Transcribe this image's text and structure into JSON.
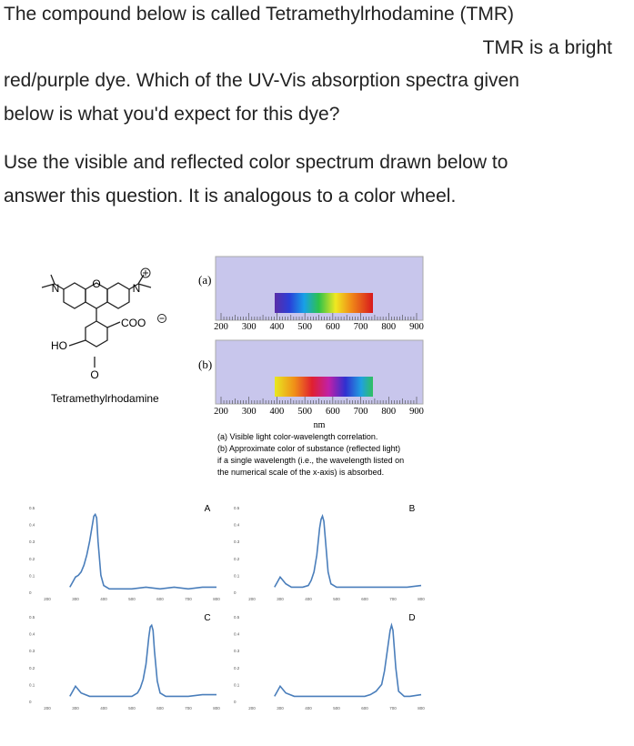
{
  "question": {
    "lines": [
      "The compound below is called Tetramethylrhodamine (TMR)",
      "TMR is a bright",
      "red/purple dye. Which of the UV-Vis absorption spectra given",
      "below is what you'd expect for this dye?"
    ],
    "hint_lines": [
      "Use the visible and reflected color spectrum drawn below to",
      "answer this question. It is analogous to a color wheel."
    ]
  },
  "molecule": {
    "atoms": [
      "N",
      "O",
      "N",
      "COO",
      "HO",
      "O"
    ],
    "name": "Tetramethylrhodamine"
  },
  "spectrum": {
    "panel_a": "(a)",
    "panel_b": "(b)",
    "ticks": [
      "200",
      "300",
      "400",
      "500",
      "600",
      "700",
      "800",
      "900"
    ],
    "unit": "nm",
    "caption": [
      "(a) Visible light color-wavelength correlation.",
      "(b) Approximate color of substance (reflected light)",
      "if a single wavelength (i.e., the wavelength listed on",
      "the numerical scale of the x-axis) is absorbed."
    ]
  },
  "chart_data": [
    {
      "type": "line",
      "title": "A",
      "color": "#4a7ebb",
      "xlim": [
        200,
        800
      ],
      "ylim": [
        0,
        0.5
      ],
      "xticks": [
        200,
        300,
        400,
        500,
        600,
        700,
        800
      ],
      "yticks": [
        0,
        0.1,
        0.2,
        0.3,
        0.4,
        0.5
      ],
      "x": [
        280,
        290,
        300,
        310,
        320,
        330,
        340,
        350,
        360,
        365,
        370,
        375,
        380,
        390,
        400,
        420,
        450,
        500,
        550,
        600,
        650,
        700,
        750,
        800
      ],
      "values": [
        0.03,
        0.06,
        0.09,
        0.1,
        0.12,
        0.16,
        0.22,
        0.3,
        0.4,
        0.45,
        0.46,
        0.44,
        0.3,
        0.1,
        0.04,
        0.02,
        0.02,
        0.02,
        0.03,
        0.02,
        0.03,
        0.02,
        0.03,
        0.03
      ]
    },
    {
      "type": "line",
      "title": "B",
      "color": "#4a7ebb",
      "xlim": [
        200,
        800
      ],
      "ylim": [
        0,
        0.5
      ],
      "xticks": [
        200,
        300,
        400,
        500,
        600,
        700,
        800
      ],
      "yticks": [
        0,
        0.1,
        0.2,
        0.3,
        0.4,
        0.5
      ],
      "x": [
        280,
        290,
        300,
        320,
        340,
        360,
        380,
        400,
        410,
        420,
        430,
        440,
        445,
        450,
        455,
        460,
        470,
        480,
        500,
        550,
        600,
        650,
        700,
        750,
        800
      ],
      "values": [
        0.03,
        0.06,
        0.09,
        0.05,
        0.03,
        0.03,
        0.03,
        0.04,
        0.07,
        0.12,
        0.22,
        0.38,
        0.43,
        0.45,
        0.42,
        0.32,
        0.12,
        0.05,
        0.03,
        0.03,
        0.03,
        0.03,
        0.03,
        0.03,
        0.04
      ]
    },
    {
      "type": "line",
      "title": "C",
      "color": "#4a7ebb",
      "xlim": [
        200,
        800
      ],
      "ylim": [
        0,
        0.5
      ],
      "xticks": [
        200,
        300,
        400,
        500,
        600,
        700,
        800
      ],
      "yticks": [
        0,
        0.1,
        0.2,
        0.3,
        0.4,
        0.5
      ],
      "x": [
        280,
        290,
        300,
        320,
        350,
        400,
        450,
        500,
        520,
        530,
        540,
        550,
        560,
        565,
        570,
        575,
        580,
        590,
        600,
        620,
        650,
        700,
        750,
        800
      ],
      "values": [
        0.03,
        0.06,
        0.09,
        0.05,
        0.03,
        0.03,
        0.03,
        0.03,
        0.05,
        0.08,
        0.13,
        0.22,
        0.38,
        0.44,
        0.45,
        0.42,
        0.3,
        0.12,
        0.05,
        0.03,
        0.03,
        0.03,
        0.04,
        0.04
      ]
    },
    {
      "type": "line",
      "title": "D",
      "color": "#4a7ebb",
      "xlim": [
        200,
        800
      ],
      "ylim": [
        0,
        0.5
      ],
      "xticks": [
        200,
        300,
        400,
        500,
        600,
        700,
        800
      ],
      "yticks": [
        0,
        0.1,
        0.2,
        0.3,
        0.4,
        0.5
      ],
      "x": [
        280,
        290,
        300,
        320,
        350,
        400,
        450,
        500,
        550,
        600,
        620,
        640,
        660,
        670,
        680,
        690,
        695,
        700,
        710,
        720,
        740,
        760,
        800
      ],
      "values": [
        0.03,
        0.06,
        0.09,
        0.05,
        0.03,
        0.03,
        0.03,
        0.03,
        0.03,
        0.03,
        0.04,
        0.06,
        0.1,
        0.18,
        0.3,
        0.42,
        0.45,
        0.42,
        0.2,
        0.06,
        0.03,
        0.03,
        0.04
      ]
    }
  ]
}
